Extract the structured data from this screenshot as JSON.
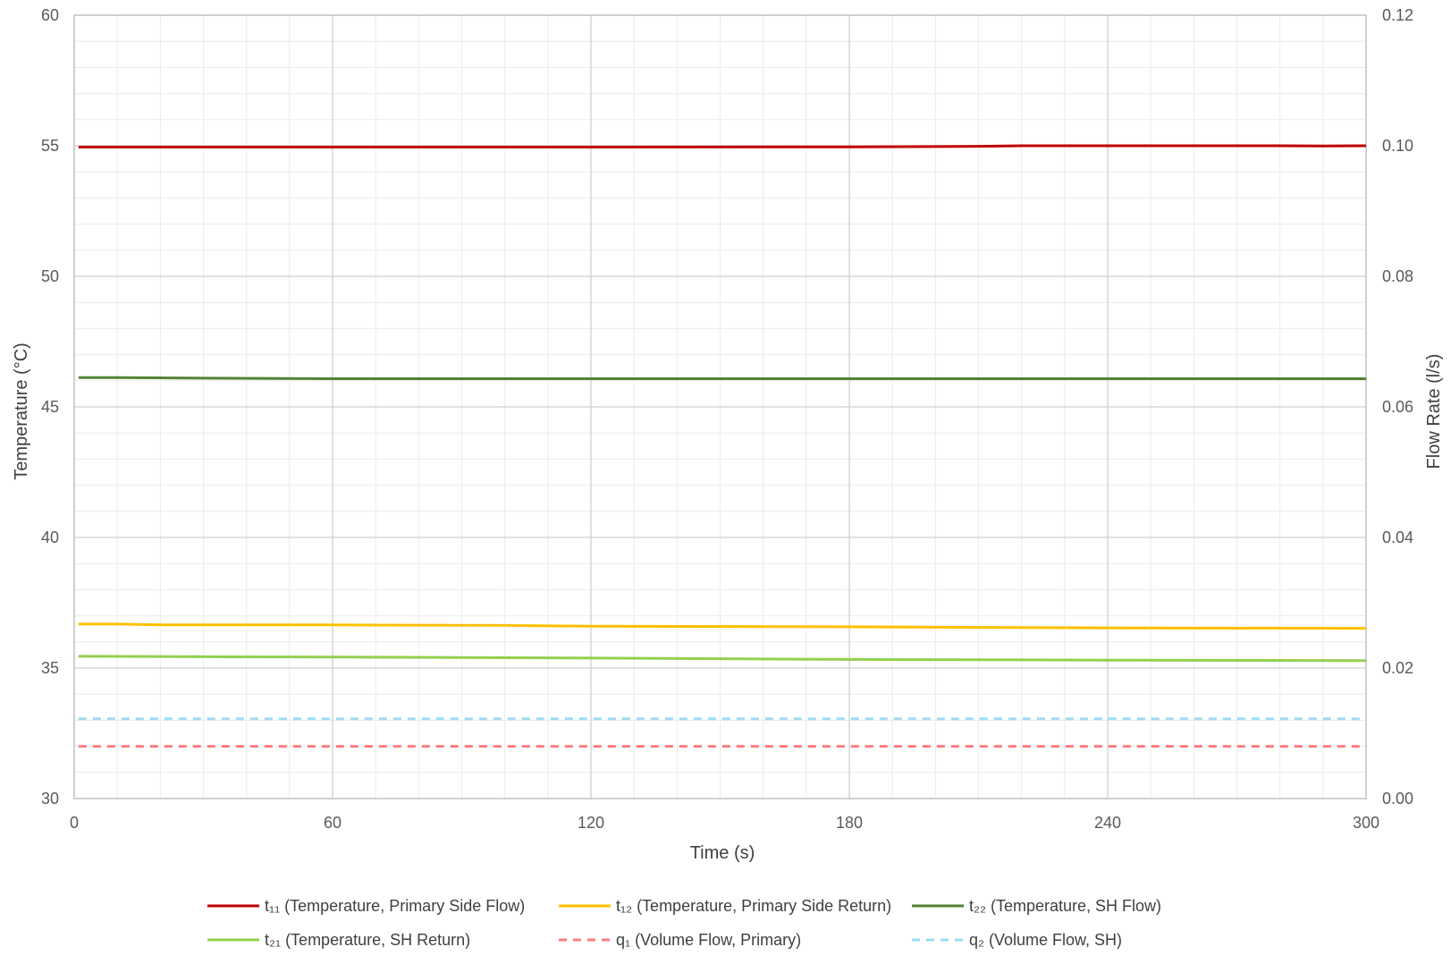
{
  "chart_data": {
    "type": "line",
    "title": "",
    "xlabel": "Time (s)",
    "ylabel": "Temperature (°C)",
    "y2label": "Flow Rate (l/s)",
    "xlim": [
      0,
      300
    ],
    "ylim": [
      30,
      60
    ],
    "y2lim": [
      0,
      0.12
    ],
    "x_ticks": [
      "0",
      "60",
      "120",
      "180",
      "240",
      "300"
    ],
    "y_ticks": [
      "30",
      "35",
      "40",
      "45",
      "50",
      "55",
      "60"
    ],
    "y2_ticks": [
      "0.00",
      "0.02",
      "0.04",
      "0.06",
      "0.08",
      "0.10",
      "0.12"
    ],
    "grid": true,
    "legend_position": "bottom",
    "series": [
      {
        "name": "t₁₁ (Temperature, Primary Side Flow)",
        "axis": "left",
        "color": "#c00000",
        "dash": false,
        "x": [
          1,
          60,
          120,
          180,
          200,
          210,
          220,
          240,
          280,
          290,
          300
        ],
        "y": [
          54.95,
          54.95,
          54.95,
          54.96,
          54.97,
          54.98,
          55.0,
          55.0,
          55.0,
          54.99,
          55.0
        ]
      },
      {
        "name": "t₁₂ (Temperature, Primary Side Return)",
        "axis": "left",
        "color": "#ffc000",
        "dash": false,
        "x": [
          1,
          10,
          20,
          60,
          100,
          120,
          180,
          200,
          250,
          300
        ],
        "y": [
          36.68,
          36.68,
          36.65,
          36.65,
          36.63,
          36.6,
          36.58,
          36.56,
          36.53,
          36.52
        ]
      },
      {
        "name": "t₂₂ (Temperature, SH Flow)",
        "axis": "left",
        "color": "#548235",
        "dash": false,
        "x": [
          1,
          10,
          30,
          60,
          120,
          180,
          240,
          300
        ],
        "y": [
          46.12,
          46.12,
          46.1,
          46.08,
          46.08,
          46.08,
          46.08,
          46.08
        ]
      },
      {
        "name": "t₂₁ (Temperature, SH Return)",
        "axis": "left",
        "color": "#92d050",
        "dash": false,
        "x": [
          1,
          30,
          60,
          120,
          180,
          240,
          300
        ],
        "y": [
          35.45,
          35.43,
          35.42,
          35.38,
          35.33,
          35.3,
          35.28
        ]
      },
      {
        "name": "q₁ (Volume Flow, Primary)",
        "axis": "right",
        "color": "#ff7c80",
        "dash": true,
        "x": [
          1,
          60,
          120,
          180,
          240,
          300
        ],
        "y": [
          0.008,
          0.008,
          0.008,
          0.008,
          0.008,
          0.008
        ]
      },
      {
        "name": "q₂ (Volume Flow, SH)",
        "axis": "right",
        "color": "#9bdcf0",
        "dash": true,
        "x": [
          1,
          60,
          120,
          180,
          240,
          300
        ],
        "y": [
          0.0122,
          0.0122,
          0.0122,
          0.0122,
          0.0122,
          0.0122
        ]
      }
    ]
  }
}
